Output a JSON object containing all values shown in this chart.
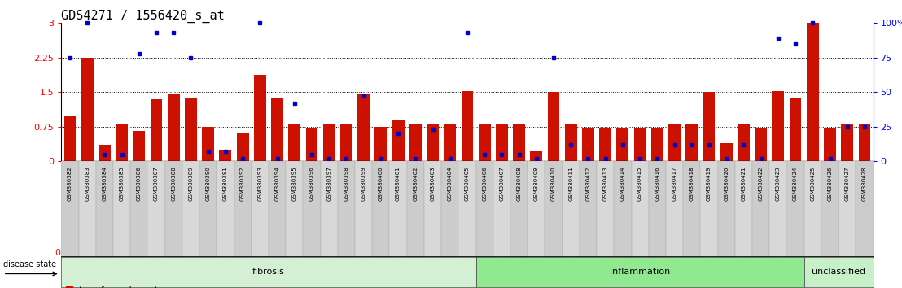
{
  "title": "GDS4271 / 1556420_s_at",
  "samples": [
    "GSM380382",
    "GSM380383",
    "GSM380384",
    "GSM380385",
    "GSM380386",
    "GSM380387",
    "GSM380388",
    "GSM380389",
    "GSM380390",
    "GSM380391",
    "GSM380392",
    "GSM380393",
    "GSM380394",
    "GSM380395",
    "GSM380396",
    "GSM380397",
    "GSM380398",
    "GSM380399",
    "GSM380400",
    "GSM380401",
    "GSM380402",
    "GSM380403",
    "GSM380404",
    "GSM380405",
    "GSM380406",
    "GSM380407",
    "GSM380408",
    "GSM380409",
    "GSM380410",
    "GSM380411",
    "GSM380412",
    "GSM380413",
    "GSM380414",
    "GSM380415",
    "GSM380416",
    "GSM380417",
    "GSM380418",
    "GSM380419",
    "GSM380420",
    "GSM380421",
    "GSM380422",
    "GSM380423",
    "GSM380424",
    "GSM380425",
    "GSM380426",
    "GSM380427",
    "GSM380428"
  ],
  "red_values": [
    1.0,
    2.25,
    0.35,
    0.82,
    0.65,
    1.35,
    1.47,
    1.38,
    0.75,
    0.25,
    0.62,
    1.88,
    1.38,
    0.82,
    0.72,
    0.82,
    0.82,
    1.47,
    0.75,
    0.9,
    0.8,
    0.82,
    0.82,
    1.52,
    0.82,
    0.82,
    0.82,
    0.22,
    1.5,
    0.82,
    0.72,
    0.72,
    0.72,
    0.72,
    0.72,
    0.82,
    0.82,
    1.5,
    0.4,
    0.82,
    0.72,
    1.52,
    1.38,
    3.0,
    0.72,
    0.82,
    0.82
  ],
  "blue_percentile": [
    75,
    100,
    5,
    5,
    78,
    93,
    93,
    75,
    7,
    7,
    2,
    100,
    2,
    42,
    5,
    2,
    2,
    47,
    2,
    20,
    2,
    23,
    2,
    93,
    5,
    5,
    5,
    2,
    75,
    12,
    2,
    2,
    12,
    2,
    2,
    12,
    12,
    12,
    2,
    12,
    2,
    89,
    85,
    100,
    2,
    25,
    25
  ],
  "groups": [
    {
      "name": "fibrosis",
      "start": 0,
      "end": 23,
      "color": "#d4f0d4"
    },
    {
      "name": "inflammation",
      "start": 24,
      "end": 42,
      "color": "#90e890"
    },
    {
      "name": "unclassified",
      "start": 43,
      "end": 46,
      "color": "#c8f0c8"
    }
  ],
  "ylim_left": [
    0,
    3.0
  ],
  "ylim_right": [
    0,
    100
  ],
  "yticks_left": [
    0,
    0.75,
    1.5,
    2.25,
    3.0
  ],
  "ytick_labels_left": [
    "0",
    "0.75",
    "1.5",
    "2.25",
    "3"
  ],
  "yticks_right": [
    0,
    25,
    50,
    75,
    100
  ],
  "ytick_labels_right": [
    "0",
    "25",
    "50",
    "75",
    "100%"
  ],
  "hlines": [
    0.75,
    1.5,
    2.25
  ],
  "bar_color": "#cc1100",
  "dot_color": "#0000cc",
  "title_fontsize": 11
}
